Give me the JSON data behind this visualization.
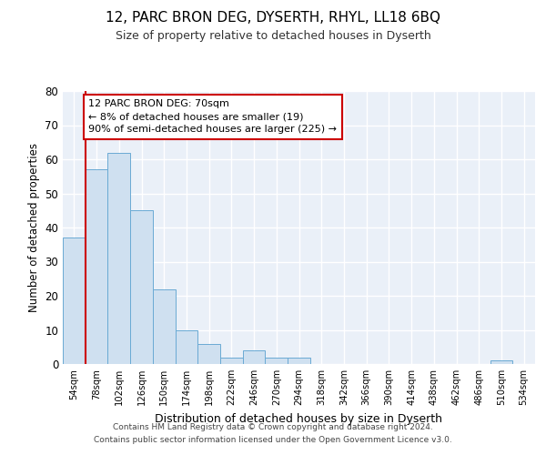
{
  "title1": "12, PARC BRON DEG, DYSERTH, RHYL, LL18 6BQ",
  "title2": "Size of property relative to detached houses in Dyserth",
  "xlabel": "Distribution of detached houses by size in Dyserth",
  "ylabel": "Number of detached properties",
  "categories": [
    "54sqm",
    "78sqm",
    "102sqm",
    "126sqm",
    "150sqm",
    "174sqm",
    "198sqm",
    "222sqm",
    "246sqm",
    "270sqm",
    "294sqm",
    "318sqm",
    "342sqm",
    "366sqm",
    "390sqm",
    "414sqm",
    "438sqm",
    "462sqm",
    "486sqm",
    "510sqm",
    "534sqm"
  ],
  "values": [
    37,
    57,
    62,
    45,
    22,
    10,
    6,
    2,
    4,
    2,
    2,
    0,
    0,
    0,
    0,
    0,
    0,
    0,
    0,
    1,
    0
  ],
  "bar_color": "#cfe0f0",
  "bar_edge_color": "#6aaad4",
  "ylim": [
    0,
    80
  ],
  "yticks": [
    0,
    10,
    20,
    30,
    40,
    50,
    60,
    70,
    80
  ],
  "annotation_line": "12 PARC BRON DEG: 70sqm",
  "annotation_line2": "← 8% of detached houses are smaller (19)",
  "annotation_line3": "90% of semi-detached houses are larger (225) →",
  "annotation_box_color": "#ffffff",
  "annotation_box_edge": "#cc0000",
  "red_line_x": 0.5,
  "footer1": "Contains HM Land Registry data © Crown copyright and database right 2024.",
  "footer2": "Contains public sector information licensed under the Open Government Licence v3.0.",
  "bg_color": "#eaf0f8",
  "bar_width": 1.0,
  "grid_color": "#ffffff",
  "title1_fontsize": 11,
  "title2_fontsize": 9
}
